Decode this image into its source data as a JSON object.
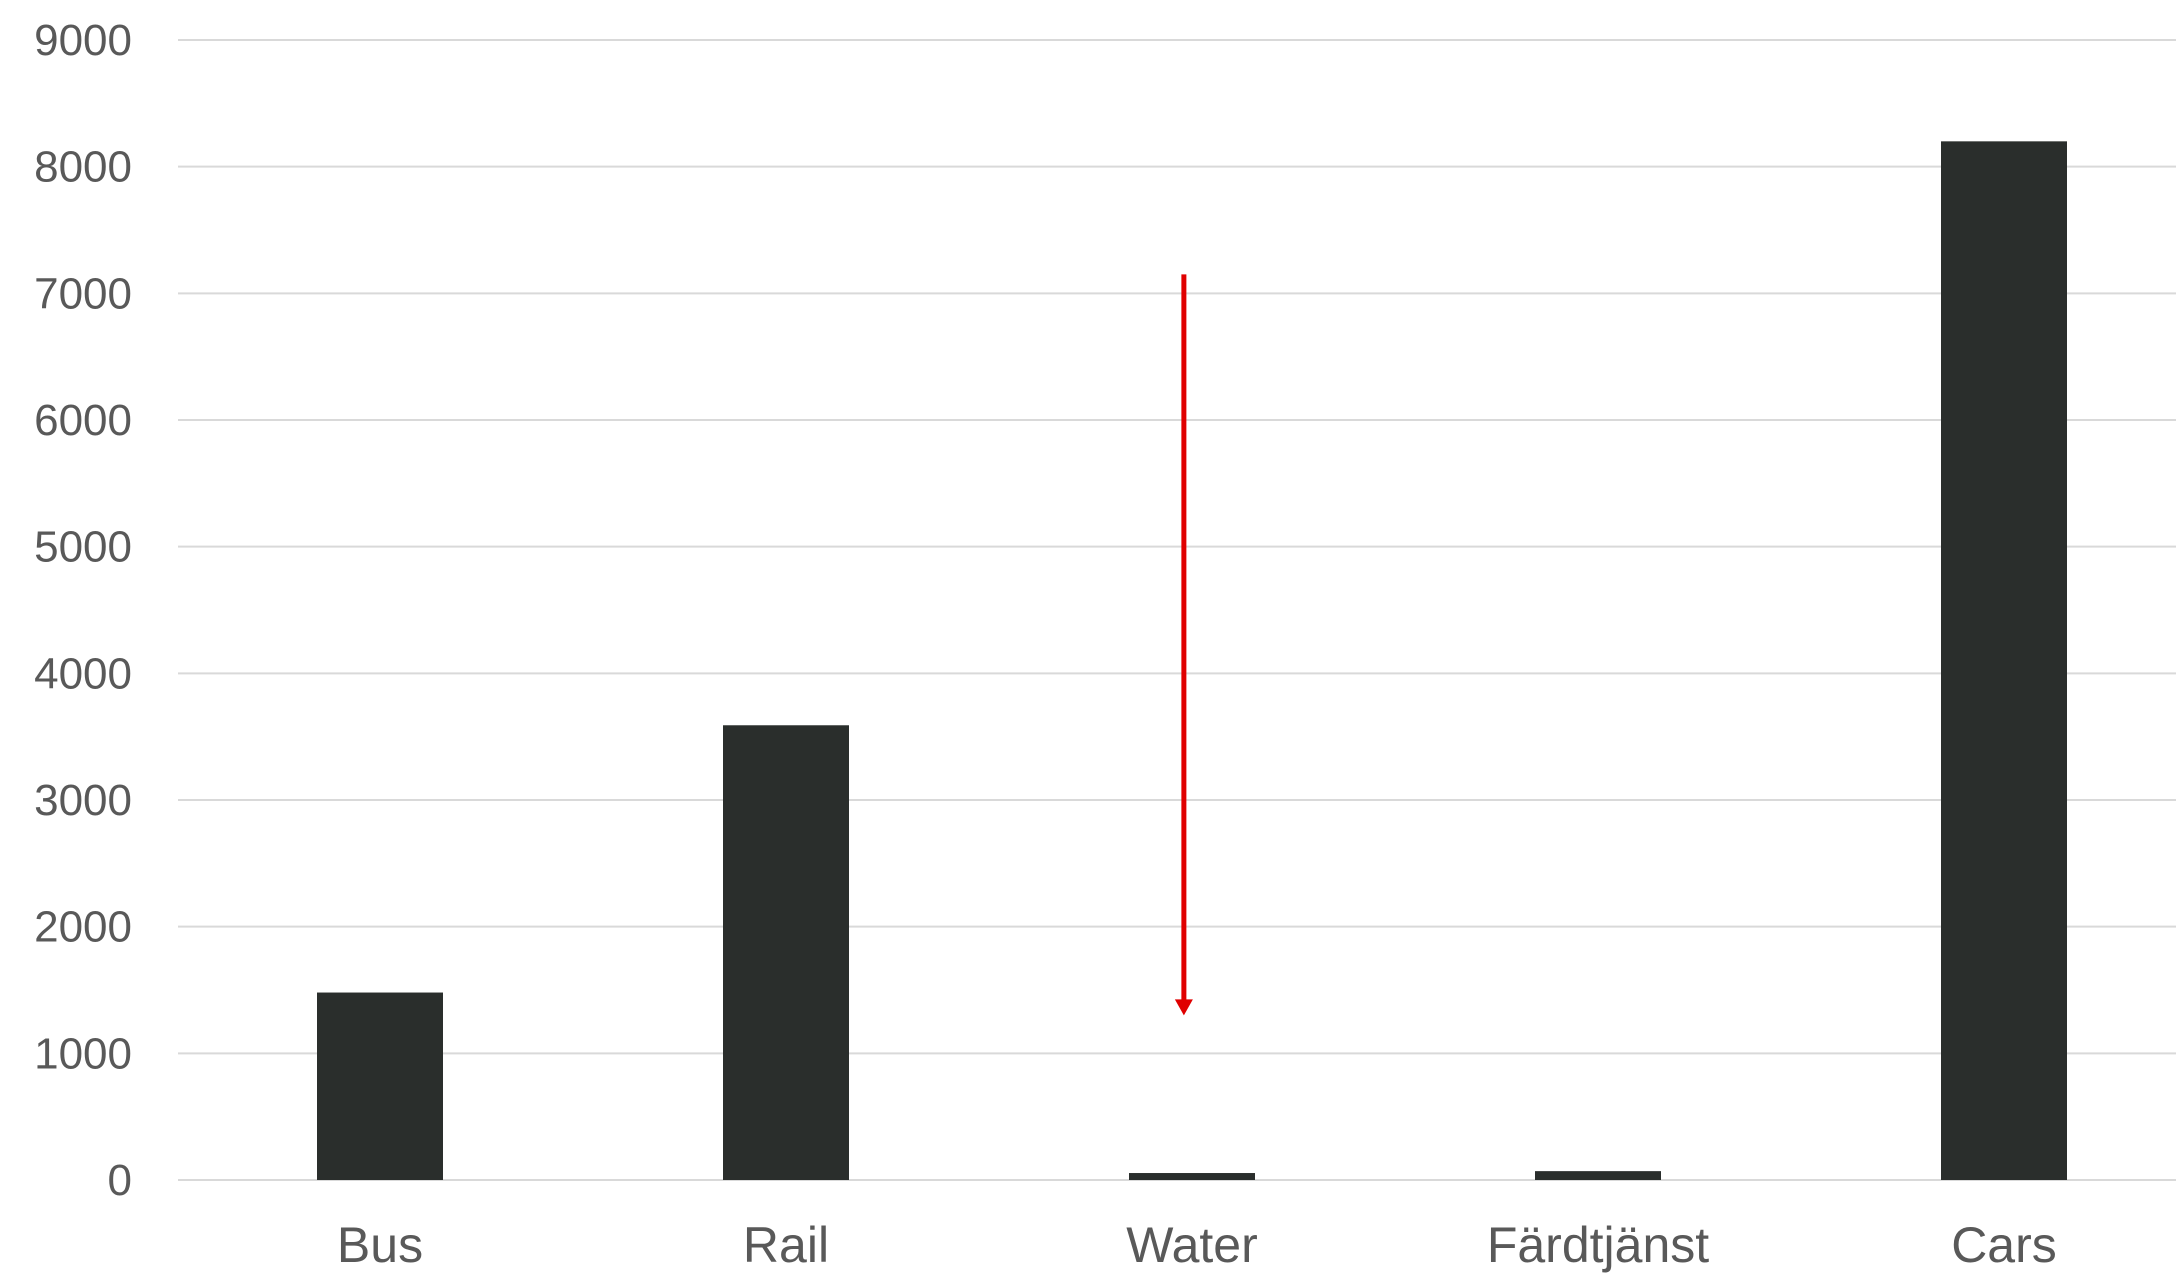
{
  "chart_data": {
    "type": "bar",
    "title": "",
    "xlabel": "",
    "ylabel": "",
    "categories": [
      "Bus",
      "Rail",
      "Water",
      "Färdtjänst",
      "Cars"
    ],
    "series": [
      {
        "values": [
          1480,
          3590,
          55,
          70,
          8200
        ]
      }
    ],
    "ylim": [
      0,
      9000
    ],
    "yticks": [
      0,
      1000,
      2000,
      3000,
      4000,
      5000,
      6000,
      7000,
      8000,
      9000
    ],
    "grid": true,
    "legend": "none",
    "bar_color": "#2a2e2c",
    "gridline_color": "#d9d9d9",
    "axis_label_color": "#595959",
    "annotations": [
      {
        "type": "arrow",
        "color": "#e00000",
        "category": "Water",
        "from_y": 7150,
        "to_y": 1300,
        "offset_x": -0.02
      }
    ]
  }
}
